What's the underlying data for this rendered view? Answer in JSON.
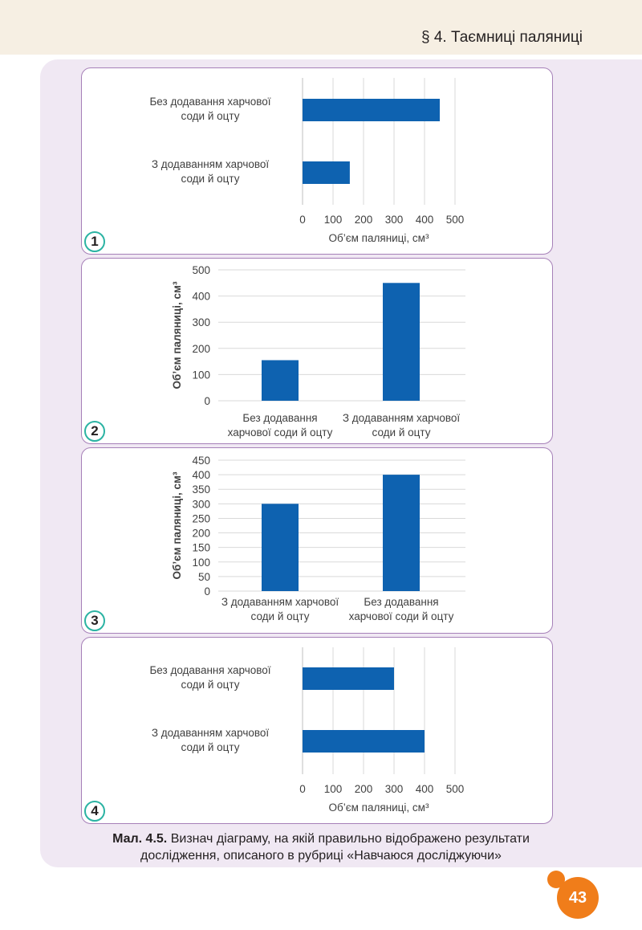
{
  "header": {
    "section_title": "§ 4. Таємниці паляниці"
  },
  "colors": {
    "bar": "#0e62b0",
    "card_border": "#a680b8",
    "badge_border": "#2bb3a3",
    "page_number_bg": "#f07d1a",
    "panel_bg": "#f0e8f3"
  },
  "chart_data": [
    {
      "panel_number": "1",
      "type": "bar",
      "orientation": "horizontal",
      "categories": [
        "Без додавання харчової соди й оцту",
        "З додаванням харчової соди й оцту"
      ],
      "category_lines": [
        [
          "Без додавання харчової",
          "соди й оцту"
        ],
        [
          "З додаванням харчової",
          "соди й оцту"
        ]
      ],
      "values": [
        450,
        155
      ],
      "xlabel": "Об’єм паляниці, см³",
      "ylabel": "",
      "xlim": [
        0,
        500
      ],
      "ticks": [
        0,
        100,
        200,
        300,
        400,
        500
      ],
      "tick_labels": [
        "0",
        "100",
        "200",
        "300",
        "400",
        "500"
      ],
      "grid": true
    },
    {
      "panel_number": "2",
      "type": "bar",
      "orientation": "vertical",
      "categories": [
        "Без додавання харчової соди й оцту",
        "З додаванням харчової соди й оцту"
      ],
      "category_lines": [
        [
          "Без додавання",
          "харчової соди й оцту"
        ],
        [
          "З додаванням харчової",
          "соди й оцту"
        ]
      ],
      "values": [
        155,
        450
      ],
      "ylabel": "Об’єм паляниці, см³",
      "xlabel": "",
      "ylim": [
        0,
        500
      ],
      "ticks": [
        0,
        100,
        200,
        300,
        400,
        500
      ],
      "tick_labels": [
        "0",
        "100",
        "200",
        "300",
        "400",
        "500"
      ],
      "grid": true
    },
    {
      "panel_number": "3",
      "type": "bar",
      "orientation": "vertical",
      "categories": [
        "З додаванням харчової соди й оцту",
        "Без додавання харчової соди й оцту"
      ],
      "category_lines": [
        [
          "З додаванням харчової",
          "соди й оцту"
        ],
        [
          "Без додавання",
          "харчової соди й оцту"
        ]
      ],
      "values": [
        300,
        400
      ],
      "ylabel": "Об’єм паляниці, см³",
      "xlabel": "",
      "ylim": [
        0,
        450
      ],
      "ticks": [
        0,
        50,
        100,
        150,
        200,
        250,
        300,
        350,
        400,
        450
      ],
      "tick_labels": [
        "0",
        "50",
        "100",
        "150",
        "200",
        "250",
        "300",
        "350",
        "400",
        "450"
      ],
      "grid": true
    },
    {
      "panel_number": "4",
      "type": "bar",
      "orientation": "horizontal",
      "categories": [
        "Без додавання харчової соди й оцту",
        "З додаванням харчової соди й оцту"
      ],
      "category_lines": [
        [
          "Без додавання харчової",
          "соди й оцту"
        ],
        [
          "З додаванням харчової",
          "соди й оцту"
        ]
      ],
      "values": [
        300,
        400
      ],
      "xlabel": "Об’єм паляниці, см³",
      "ylabel": "",
      "xlim": [
        0,
        500
      ],
      "ticks": [
        0,
        100,
        200,
        300,
        400,
        500
      ],
      "tick_labels": [
        "0",
        "100",
        "200",
        "300",
        "400",
        "500"
      ],
      "grid": true
    }
  ],
  "caption": {
    "label": "Мал. 4.5.",
    "text_line1": "Визнач діаграму, на якій правильно відображено результати",
    "text_line2": "дослідження, описаного в рубриці «Навчаюся досліджуючи»"
  },
  "page_number": "43"
}
